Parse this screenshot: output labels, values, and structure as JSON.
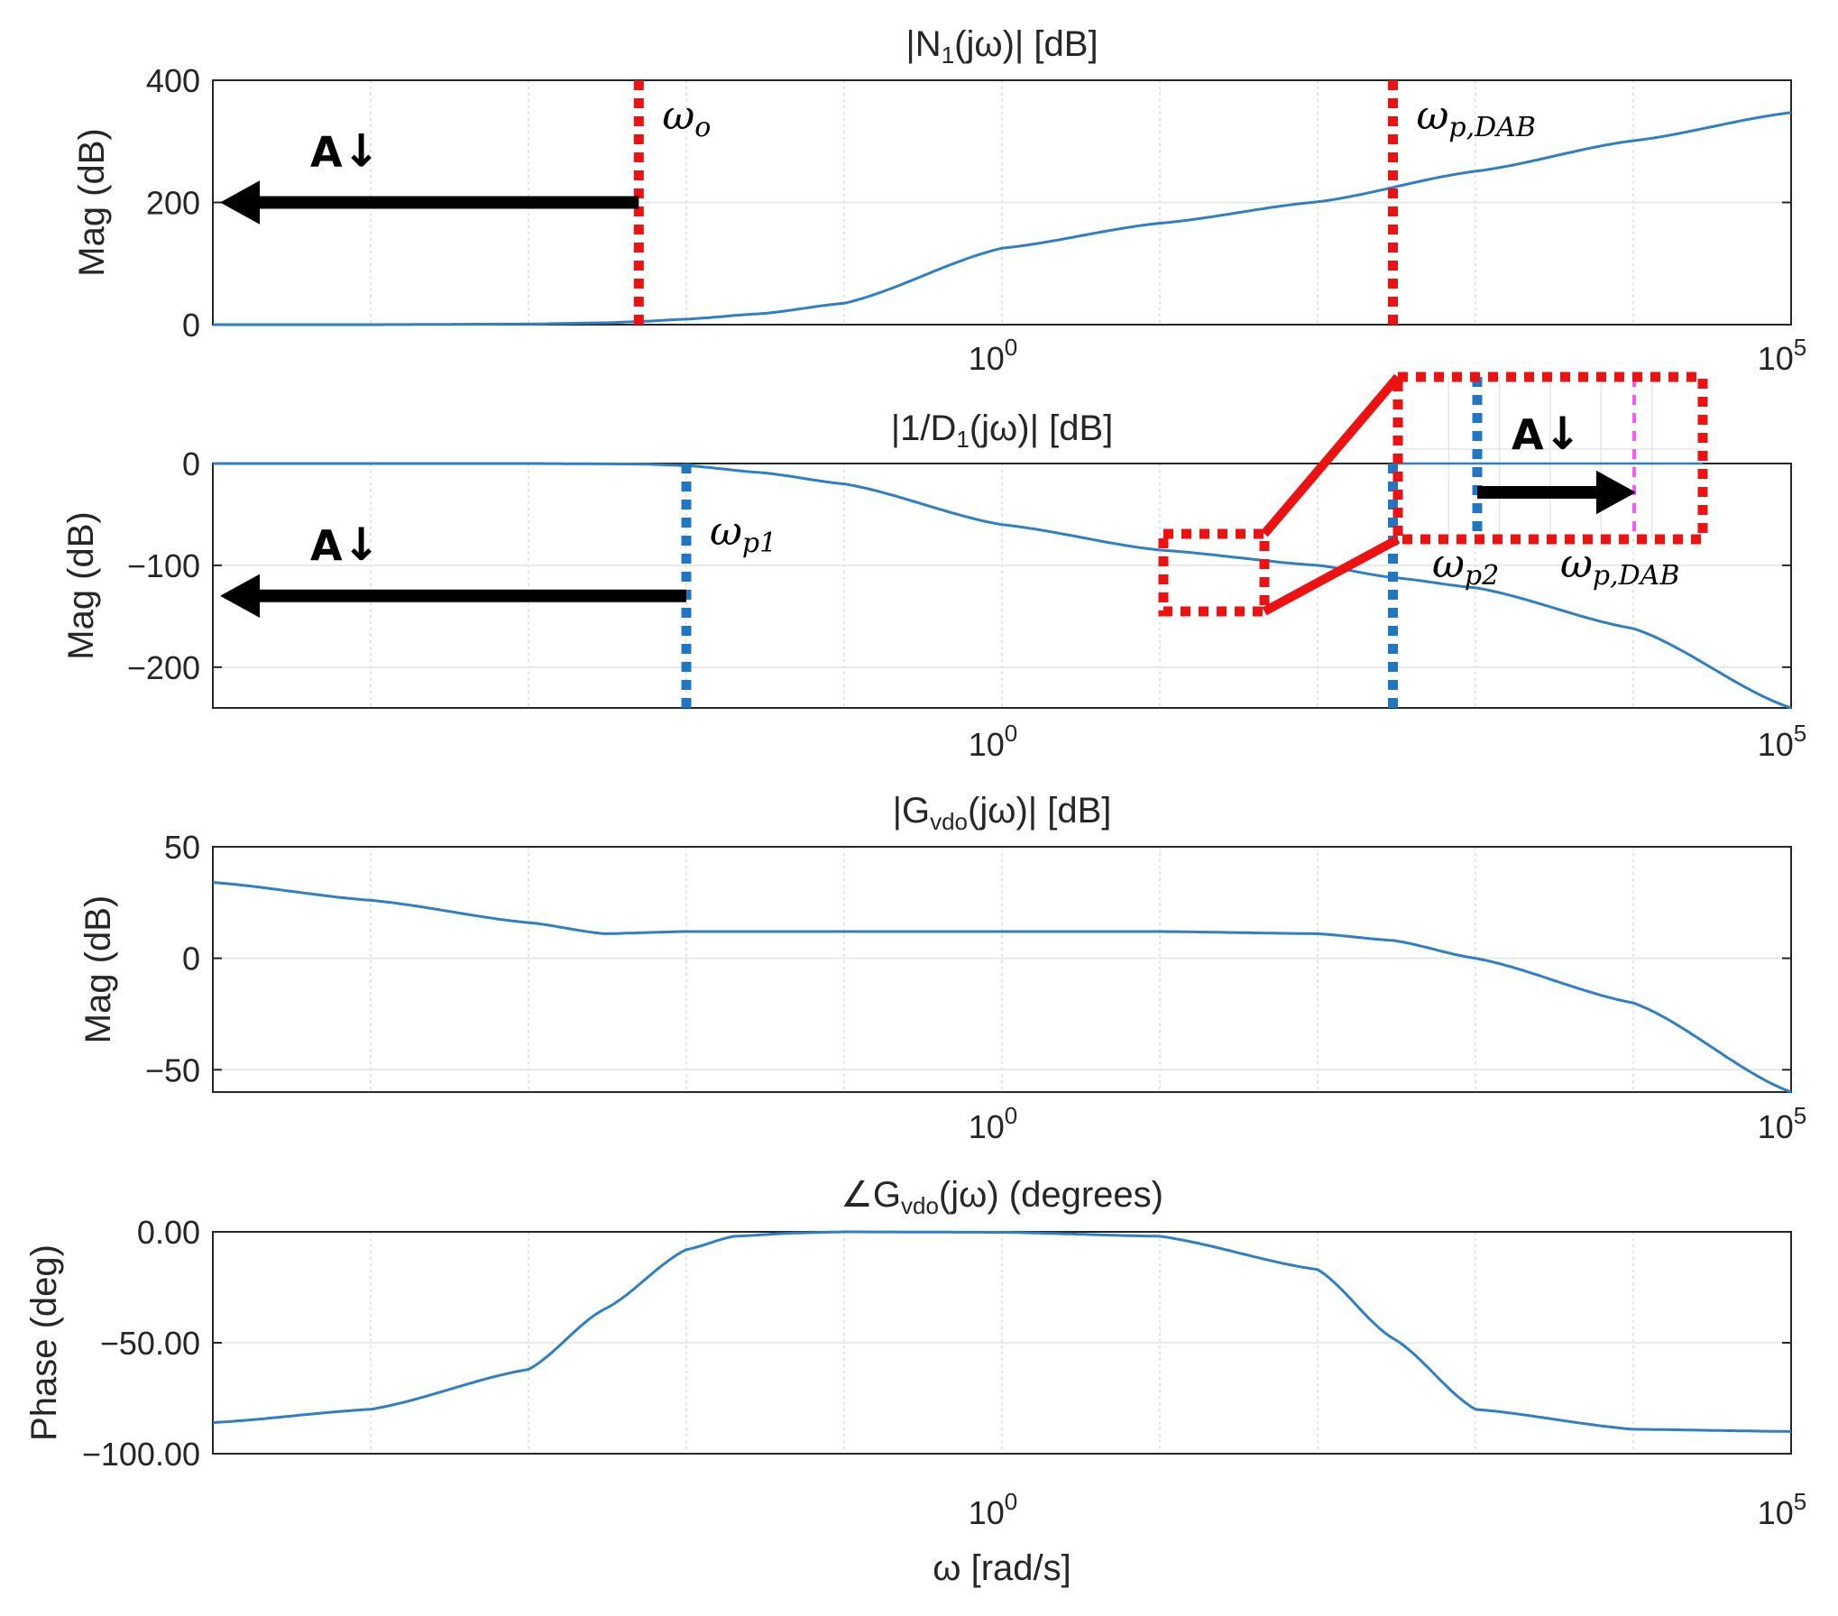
{
  "chart_data": [
    {
      "id": "n1",
      "type": "line",
      "title": "|N",
      "title_sub": "1",
      "title_rest": "(jω)|  [dB]",
      "xlabel": "",
      "ylabel": "Mag (dB)",
      "xscale": "log",
      "xlim": [
        1e-05,
        100000.0
      ],
      "ylim": [
        0,
        400
      ],
      "yticks": [
        0,
        200,
        400
      ],
      "ytick_labels": [
        "0",
        "200",
        "400"
      ],
      "grid": true,
      "series": [
        {
          "name": "|N1(jω)|",
          "color": "#2f7fc4",
          "x": [
            1e-05,
            0.0001,
            0.001,
            0.003,
            0.005,
            0.01,
            0.03,
            0.1,
            1,
            10,
            100,
            1000,
            10000.0,
            100000.0
          ],
          "y": [
            0,
            0,
            1,
            3,
            5,
            9,
            18,
            35,
            125,
            166,
            201,
            251,
            301,
            347
          ]
        }
      ],
      "vlines": [
        {
          "x": 0.005,
          "ymin": 0,
          "ymax": 400,
          "color": "#ee1111",
          "label": "ω",
          "label_sub": "o"
        },
        {
          "x": 300,
          "ymin": 0,
          "ymax": 400,
          "color": "#ee1111",
          "label": "ω",
          "label_sub": "p,DAB"
        }
      ],
      "arrows": [
        {
          "label": "A",
          "label_arrow": "↓",
          "direction": "left",
          "x_from": 0.005,
          "x_to": 1e-05,
          "y": 200
        }
      ]
    },
    {
      "id": "d1",
      "type": "line",
      "title": "|1/D",
      "title_sub": "1",
      "title_rest": "(jω)|  [dB]",
      "xlabel": "",
      "ylabel": "Mag (dB)",
      "xscale": "log",
      "xlim": [
        1e-05,
        100000.0
      ],
      "ylim": [
        -240,
        0
      ],
      "yticks": [
        -200,
        -100,
        0
      ],
      "ytick_labels": [
        "−200",
        "−100",
        "0"
      ],
      "grid": true,
      "series": [
        {
          "name": "|1/D1(jω)|",
          "color": "#2f7fc4",
          "x": [
            1e-05,
            0.001,
            0.005,
            0.01,
            0.03,
            0.1,
            1,
            10,
            100,
            300,
            1000,
            10000.0,
            100000.0
          ],
          "y": [
            0,
            0,
            -0.5,
            -2,
            -9,
            -20,
            -60,
            -85,
            -100,
            -112,
            -122,
            -162,
            -240
          ]
        }
      ],
      "vlines": [
        {
          "x": 0.01,
          "ymin": -240,
          "ymax": 0,
          "color": "#1f77c4",
          "label": "ω",
          "label_sub": "p1"
        },
        {
          "x": 300,
          "ymin": -240,
          "ymax": 0,
          "color": "#1f77c4",
          "label": "",
          "label_sub": ""
        }
      ],
      "arrows": [
        {
          "label": "A",
          "label_arrow": "↓",
          "direction": "left",
          "x_from": 0.01,
          "x_to": 1e-05,
          "y": -130
        }
      ],
      "inset": {
        "annotations": [
          {
            "label": "ω",
            "label_sub": "p2"
          },
          {
            "label": "ω",
            "label_sub": "p,DAB"
          }
        ],
        "arrow": {
          "label": "A",
          "label_arrow": "↓",
          "direction": "right"
        }
      }
    },
    {
      "id": "gmag",
      "type": "line",
      "title": "|G",
      "title_sub": "vdo",
      "title_rest": "(jω)|  [dB]",
      "xlabel": "",
      "ylabel": "Mag (dB)",
      "xscale": "log",
      "xlim": [
        1e-05,
        100000.0
      ],
      "ylim": [
        -60,
        50
      ],
      "yticks": [
        -50,
        0,
        50
      ],
      "ytick_labels": [
        "−50",
        "0",
        "50"
      ],
      "grid": true,
      "series": [
        {
          "name": "|Gvdo(jω)|",
          "color": "#2f7fc4",
          "x": [
            1e-05,
            0.0001,
            0.001,
            0.003,
            0.01,
            0.1,
            1,
            10,
            100,
            300,
            1000,
            10000.0,
            100000.0
          ],
          "y": [
            34,
            26,
            16,
            11,
            12,
            12,
            12,
            12,
            11,
            8,
            0,
            -20,
            -60
          ]
        }
      ]
    },
    {
      "id": "gphase",
      "type": "line",
      "title": "∠G",
      "title_sub": "vdo",
      "title_rest": "(jω)  (degrees)",
      "xlabel": "ω  [rad/s]",
      "ylabel": "Phase (deg)",
      "xscale": "log",
      "xlim": [
        1e-05,
        100000.0
      ],
      "ylim": [
        -100,
        0
      ],
      "yticks": [
        -100,
        -50,
        0
      ],
      "ytick_labels": [
        "−100.00",
        "−50.00",
        "0.00"
      ],
      "grid": true,
      "series": [
        {
          "name": "∠Gvdo(jω)",
          "color": "#2f7fc4",
          "x": [
            1e-05,
            0.0001,
            0.001,
            0.003,
            0.01,
            0.02,
            0.05,
            0.1,
            1,
            10,
            100,
            300,
            1000,
            10000.0,
            100000.0
          ],
          "y": [
            -86,
            -80,
            -62,
            -35,
            -8,
            -2,
            -0.5,
            0,
            -0.2,
            -2,
            -17,
            -48,
            -80,
            -89,
            -90
          ]
        }
      ]
    }
  ],
  "xtick_major_labels": [
    {
      "base": "10",
      "exp": "0"
    },
    {
      "base": "10",
      "exp": "5"
    }
  ]
}
